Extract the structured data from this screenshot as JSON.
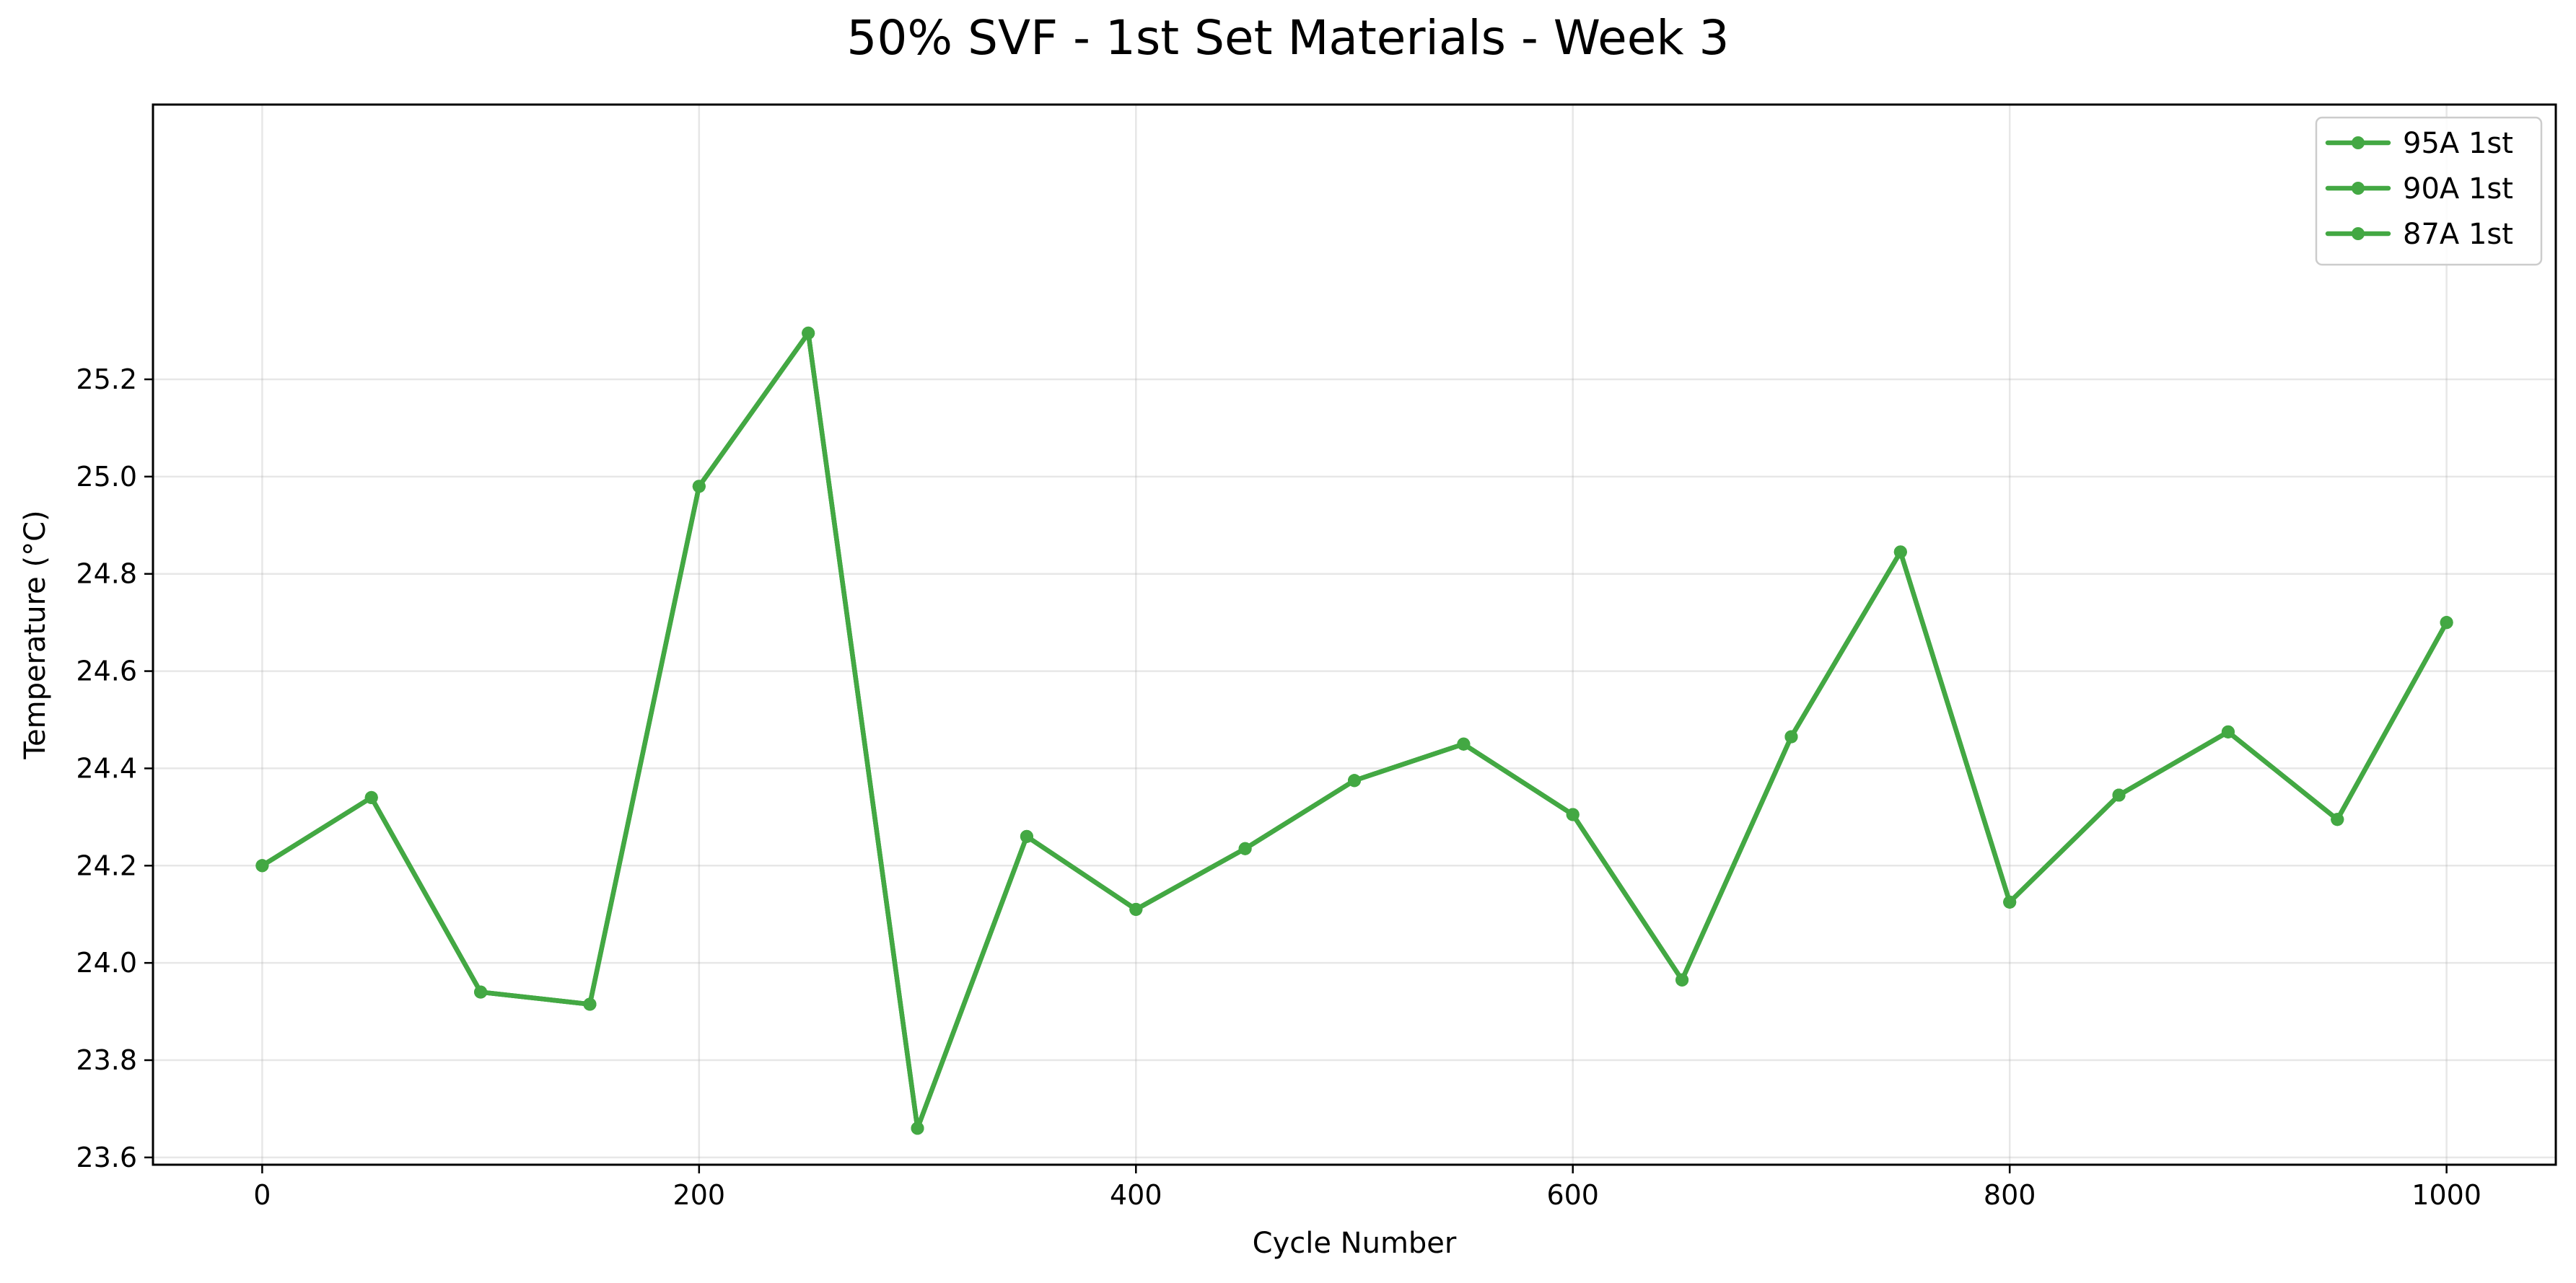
{
  "chart_data": {
    "type": "line",
    "title": "50% SVF - 1st Set Materials - Week 3",
    "xlabel": "Cycle Number",
    "ylabel": "Temperature (°C)",
    "xlim": [
      -50,
      1050
    ],
    "ylim": [
      23.585,
      25.765
    ],
    "xticks": [
      0,
      200,
      400,
      600,
      800,
      1000
    ],
    "yticks": [
      23.6,
      23.8,
      24.0,
      24.2,
      24.4,
      24.6,
      24.8,
      25.0,
      25.2
    ],
    "grid": true,
    "legend_position": "top-right",
    "line_color": "#43a843",
    "x": [
      0,
      50,
      100,
      150,
      200,
      250,
      300,
      350,
      400,
      450,
      500,
      550,
      600,
      650,
      700,
      750,
      800,
      850,
      900,
      950,
      1000
    ],
    "series": [
      {
        "name": "95A 1st",
        "values": [
          24.2,
          24.34,
          23.94,
          23.915,
          24.98,
          25.295,
          23.66,
          24.26,
          24.11,
          24.235,
          24.375,
          24.45,
          24.305,
          23.965,
          24.465,
          24.845,
          24.125,
          24.345,
          24.475,
          24.295,
          24.7
        ]
      },
      {
        "name": "90A 1st",
        "values": [
          24.2,
          24.34,
          23.94,
          23.915,
          24.98,
          25.295,
          23.66,
          24.26,
          24.11,
          24.235,
          24.375,
          24.45,
          24.305,
          23.965,
          24.465,
          24.845,
          24.125,
          24.345,
          24.475,
          24.295,
          24.7
        ]
      },
      {
        "name": "87A 1st",
        "values": [
          24.2,
          24.34,
          23.94,
          23.915,
          24.98,
          25.295,
          23.66,
          24.26,
          24.11,
          24.235,
          24.375,
          24.45,
          24.305,
          23.965,
          24.465,
          24.845,
          24.125,
          24.345,
          24.475,
          24.295,
          24.7
        ]
      }
    ]
  }
}
